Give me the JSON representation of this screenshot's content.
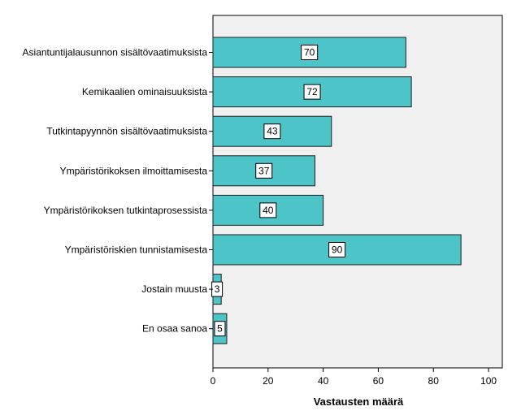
{
  "chart_data": {
    "type": "bar",
    "orientation": "horizontal",
    "categories": [
      "Asiantuntijalausunnon sisältövaatimuksista",
      "Kemikaalien ominaisuuksista",
      "Tutkintapyynnön sisältövaatimuksista",
      "Ympäristörikoksen ilmoittamisesta",
      "Ympäristörikoksen tutkintaprosessista",
      "Ympäristöriskien tunnistamisesta",
      "Jostain muusta",
      "En osaa sanoa"
    ],
    "values": [
      70,
      72,
      43,
      37,
      40,
      90,
      3,
      5
    ],
    "xlabel": "Vastausten määrä",
    "ylabel": "",
    "xlim": [
      0,
      105
    ],
    "xticks": [
      0,
      20,
      40,
      60,
      80,
      100
    ],
    "grid": false,
    "colors": {
      "bar_fill": "#4cc4c8",
      "bar_stroke": "#1e1e1e",
      "plot_background": "#f0f0f0",
      "label_box_fill": "#ffffff"
    }
  }
}
